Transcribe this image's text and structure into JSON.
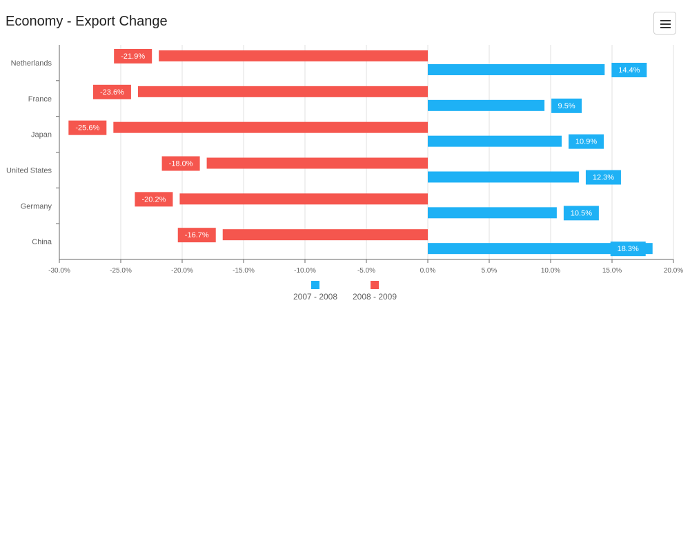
{
  "header": {
    "title": "Economy - Export Change",
    "menu_icon": "hamburger-menu-icon"
  },
  "colors": {
    "series_2007_2008": "#1eb1f5",
    "series_2008_2009": "#f5564e",
    "grid": "#e0e0e0",
    "axis": "#666666",
    "label_text": "#ffffff"
  },
  "chart_data": {
    "type": "bar",
    "orientation": "horizontal",
    "categories": [
      "Netherlands",
      "France",
      "Japan",
      "United States",
      "Germany",
      "China"
    ],
    "series": [
      {
        "name": "2007 - 2008",
        "color": "#1eb1f5",
        "values": [
          14.4,
          9.5,
          10.9,
          12.3,
          10.5,
          18.3
        ],
        "labels": [
          "14.4%",
          "9.5%",
          "10.9%",
          "12.3%",
          "10.5%",
          "18.3%"
        ]
      },
      {
        "name": "2008 - 2009",
        "color": "#f5564e",
        "values": [
          -21.9,
          -23.6,
          -25.6,
          -18.0,
          -20.2,
          -16.7
        ],
        "labels": [
          "-21.9%",
          "-23.6%",
          "-25.6%",
          "-18.0%",
          "-20.2%",
          "-16.7%"
        ]
      }
    ],
    "xlim": [
      -30,
      20
    ],
    "xticks": [
      -30,
      -25,
      -20,
      -15,
      -10,
      -5,
      0,
      5,
      10,
      15,
      20
    ],
    "xtick_labels": [
      "-30.0%",
      "-25.0%",
      "-20.0%",
      "-15.0%",
      "-10.0%",
      "-5.0%",
      "0.0%",
      "5.0%",
      "10.0%",
      "15.0%",
      "20.0%"
    ],
    "grid": true,
    "legend_position": "bottom-center"
  }
}
